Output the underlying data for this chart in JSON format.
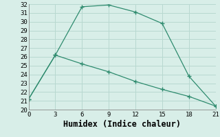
{
  "xlabel": "Humidex (Indice chaleur)",
  "line1_x": [
    0,
    3,
    6,
    9,
    12,
    15,
    18,
    21
  ],
  "line1_y": [
    21.2,
    26.2,
    31.7,
    31.9,
    31.1,
    29.8,
    23.8,
    20.4
  ],
  "line2_x": [
    0,
    3,
    6,
    9,
    12,
    15,
    18,
    21
  ],
  "line2_y": [
    21.2,
    26.2,
    25.2,
    24.3,
    23.2,
    22.3,
    21.5,
    20.4
  ],
  "line_color": "#2e8b6e",
  "bg_color": "#d8eee8",
  "grid_color": "#b8d8d0",
  "ylim": [
    20,
    32
  ],
  "xlim": [
    0,
    21
  ],
  "yticks": [
    20,
    21,
    22,
    23,
    24,
    25,
    26,
    27,
    28,
    29,
    30,
    31,
    32
  ],
  "xticks": [
    0,
    3,
    6,
    9,
    12,
    15,
    18,
    21
  ],
  "tick_fontsize": 6.5,
  "xlabel_fontsize": 8.5
}
